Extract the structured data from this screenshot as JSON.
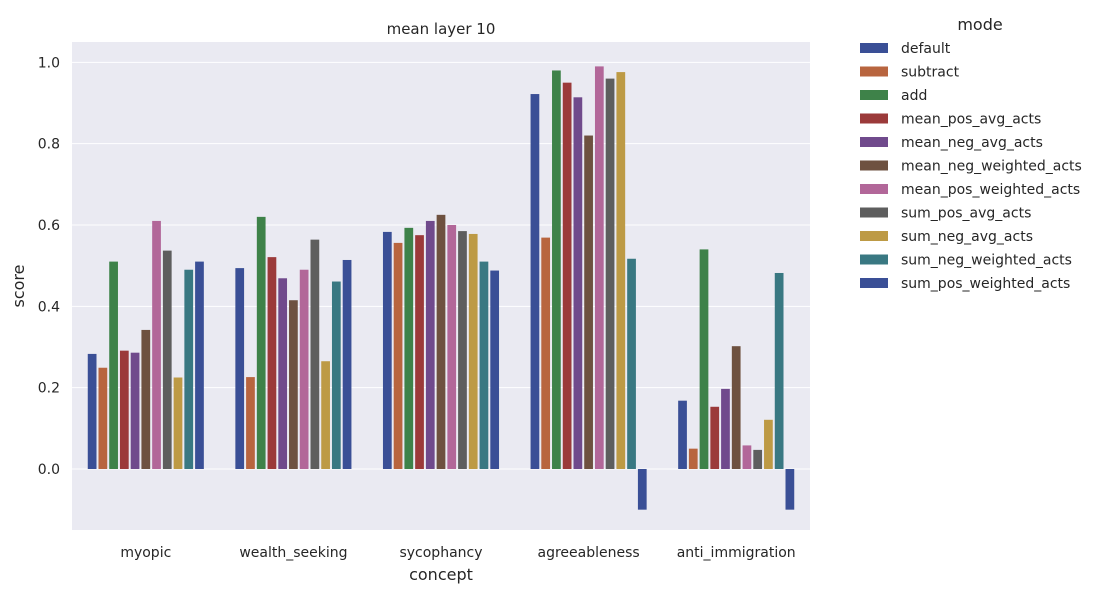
{
  "colors": {
    "background": "#eaeaf2",
    "grid": "#ffffff"
  },
  "chart_data": {
    "type": "bar",
    "title": "mean layer 10",
    "xlabel": "concept",
    "ylabel": "score",
    "ylim": [
      -0.15,
      1.05
    ],
    "yticks": [
      "0.0",
      "0.2",
      "0.4",
      "0.6",
      "0.8",
      "1.0"
    ],
    "grid": true,
    "legend_title": "mode",
    "legend_position": "outside-right",
    "categories": [
      "myopic",
      "wealth_seeking",
      "sycophancy",
      "agreeableness",
      "anti_immigration"
    ],
    "series": [
      {
        "name": "default",
        "color": "#3a4f96",
        "values": [
          0.283,
          0.494,
          0.583,
          0.922,
          0.168
        ]
      },
      {
        "name": "subtract",
        "color": "#b8653f",
        "values": [
          0.249,
          0.226,
          0.556,
          0.569,
          0.05
        ]
      },
      {
        "name": "add",
        "color": "#3e8249",
        "values": [
          0.51,
          0.62,
          0.593,
          0.98,
          0.54
        ]
      },
      {
        "name": "mean_pos_avg_acts",
        "color": "#9b3a3a",
        "values": [
          0.291,
          0.521,
          0.575,
          0.95,
          0.153
        ]
      },
      {
        "name": "mean_neg_avg_acts",
        "color": "#704a8c",
        "values": [
          0.286,
          0.469,
          0.61,
          0.914,
          0.197
        ]
      },
      {
        "name": "mean_neg_weighted_acts",
        "color": "#6e5140",
        "values": [
          0.342,
          0.415,
          0.625,
          0.82,
          0.302
        ]
      },
      {
        "name": "mean_pos_weighted_acts",
        "color": "#b26799",
        "values": [
          0.61,
          0.49,
          0.6,
          0.99,
          0.058
        ]
      },
      {
        "name": "sum_pos_avg_acts",
        "color": "#5e5e5e",
        "values": [
          0.537,
          0.564,
          0.585,
          0.96,
          0.047
        ]
      },
      {
        "name": "sum_neg_avg_acts",
        "color": "#bd9a45",
        "values": [
          0.225,
          0.265,
          0.578,
          0.976,
          0.121
        ]
      },
      {
        "name": "sum_neg_weighted_acts",
        "color": "#397882",
        "values": [
          0.49,
          0.461,
          0.51,
          0.517,
          0.482
        ]
      },
      {
        "name": "sum_pos_weighted_acts",
        "color": "#3a4f96",
        "values": [
          0.51,
          0.514,
          0.488,
          -0.1,
          -0.1
        ]
      }
    ]
  }
}
